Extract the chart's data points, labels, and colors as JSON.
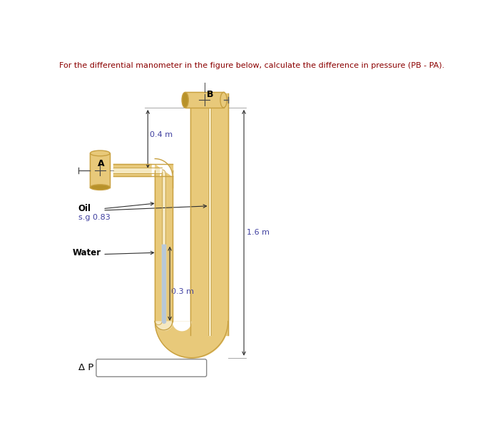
{
  "title": "For the differential manometer in the figure below, calculate the difference in pressure (PB - PA).",
  "title_color": "#8B0000",
  "background_color": "#ffffff",
  "tube_fill_color": "#E8C97A",
  "tube_wall_color": "#C8A040",
  "tube_inner_color": "#F5E8C0",
  "water_color": "#B8C8D8",
  "water_edge_color": "#8090A0",
  "label_A": "A",
  "label_B": "B",
  "label_oil": "Oil",
  "label_sg": "s.g 0.83",
  "label_water": "Water",
  "dim_04": "0.4 m",
  "dim_16": "1.6 m",
  "dim_03": "0.3 m",
  "delta_p_label": "Δ P =",
  "dim_color": "#4040A0",
  "arrow_color": "#303030",
  "figsize": [
    6.9,
    6.1
  ],
  "dpi": 100
}
